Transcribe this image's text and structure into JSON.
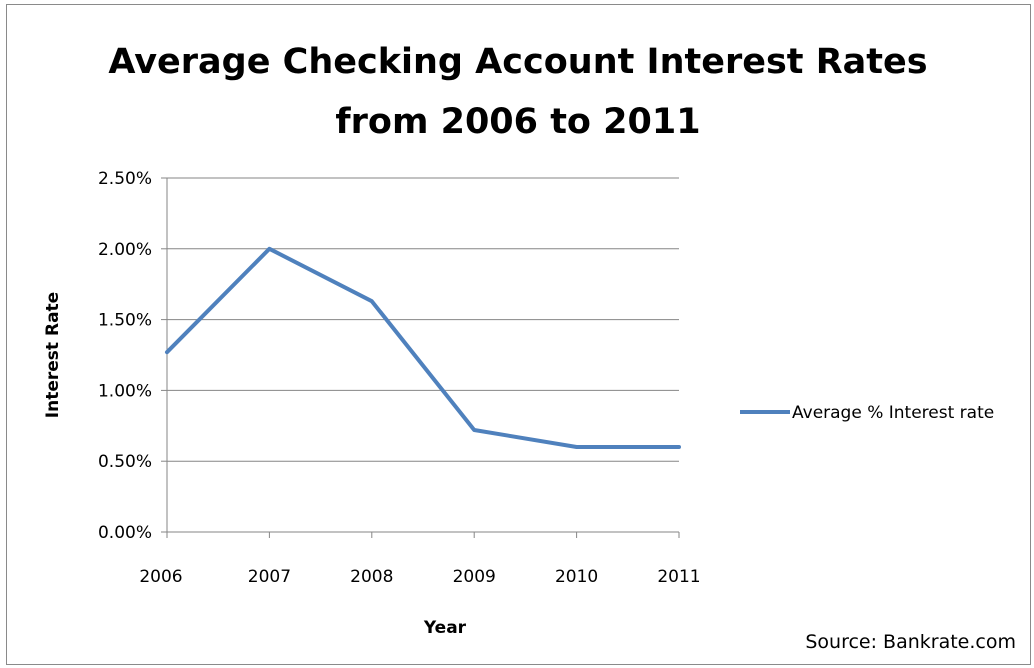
{
  "chart_data": {
    "type": "line",
    "title_lines": [
      "Average Checking Account Interest Rates",
      "from 2006 to 2011"
    ],
    "xlabel": "Year",
    "ylabel": "Interest Rate",
    "x": [
      "2006",
      "2007",
      "2008",
      "2009",
      "2010",
      "2011"
    ],
    "ylim": [
      0,
      2.5
    ],
    "y_ticks": [
      "0.00%",
      "0.50%",
      "1.00%",
      "1.50%",
      "2.00%",
      "2.50%"
    ],
    "y_tick_values": [
      0,
      0.5,
      1.0,
      1.5,
      2.0,
      2.5
    ],
    "series": [
      {
        "name": "Average % Interest rate",
        "values": [
          1.27,
          2.0,
          1.63,
          0.72,
          0.6,
          0.6
        ],
        "color": "#4f81bd"
      }
    ],
    "grid": "horizontal",
    "legend_position": "right",
    "source": "Source: Bankrate.com"
  }
}
